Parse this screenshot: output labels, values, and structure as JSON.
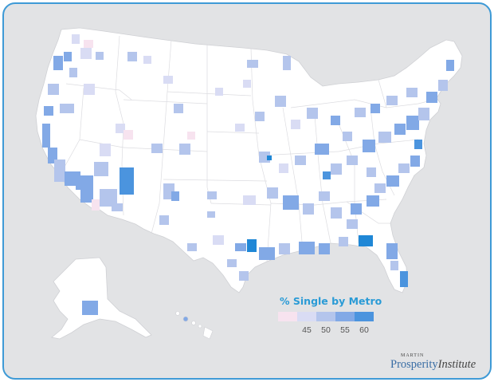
{
  "legend": {
    "title": "% Single by Metro",
    "ticks": [
      "45",
      "50",
      "55",
      "60"
    ],
    "colors": [
      "#f7e3ef",
      "#d9dcf4",
      "#b4c5ec",
      "#82a9e6",
      "#4b94de",
      "#1f87d6"
    ]
  },
  "logo": {
    "small": "MARTIN",
    "main": "Prosperity",
    "institute": "Institute"
  },
  "map": {
    "land_color": "#ffffff",
    "background_color": "#e2e3e5",
    "border_color": "#3e9ad6",
    "state_line_color": "#d4d4d8"
  }
}
